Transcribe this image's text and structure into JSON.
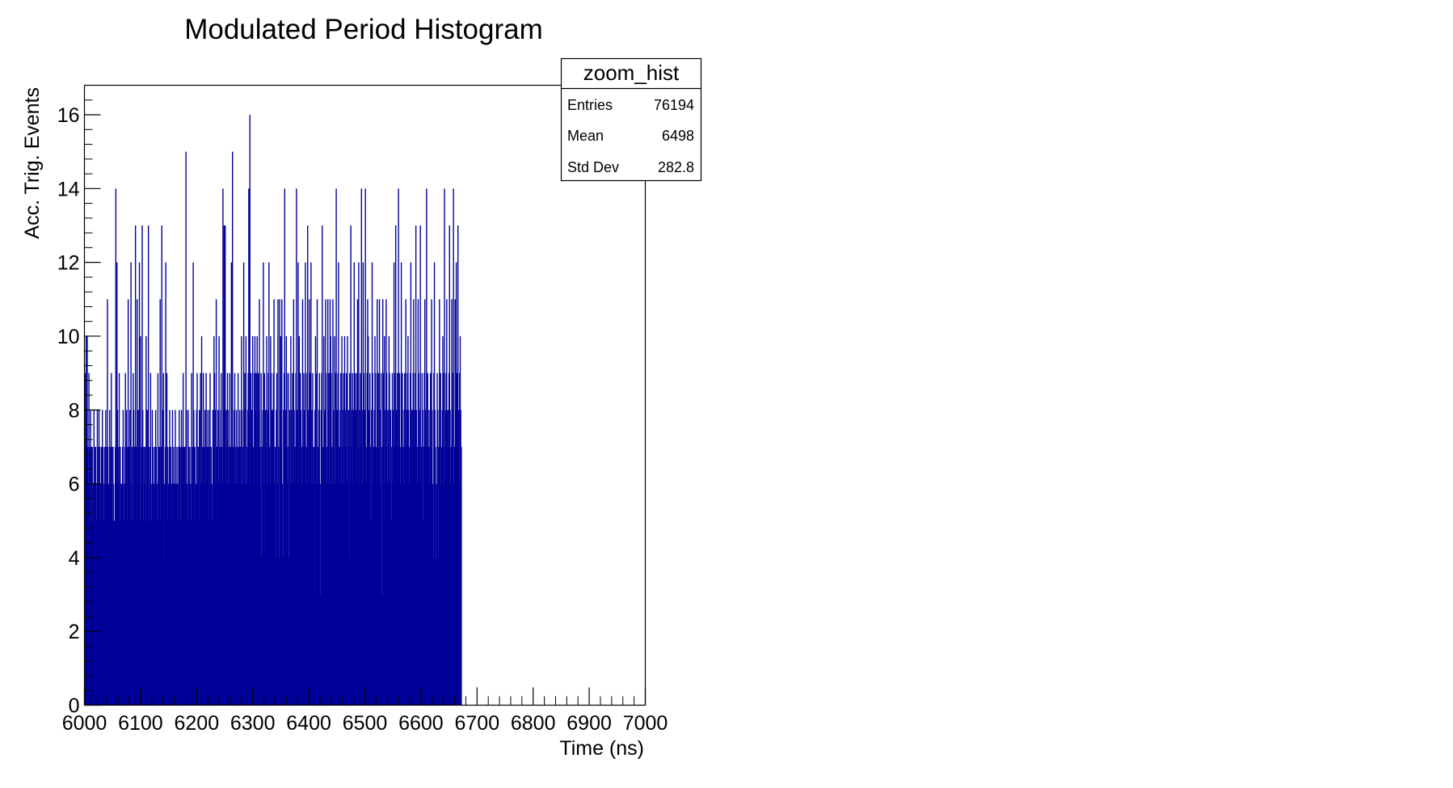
{
  "chart_data": {
    "type": "bar",
    "title": "Modulated Period Histogram",
    "xlabel": "Time (ns)",
    "ylabel": "Acc. Trig. Events",
    "xlim": [
      6000,
      7000
    ],
    "ylim": [
      0,
      16.8
    ],
    "x_ticks": [
      6000,
      6100,
      6200,
      6300,
      6400,
      6500,
      6600,
      6700,
      6800,
      6900,
      7000
    ],
    "y_ticks": [
      0,
      2,
      4,
      6,
      8,
      10,
      12,
      14,
      16
    ],
    "bin_width": 1,
    "color": "#000099",
    "series": [
      {
        "name": "zoom_hist",
        "bin_start": 6000,
        "values": [
          9,
          7,
          10,
          8,
          10,
          7,
          6,
          9,
          7,
          5,
          8,
          7,
          6,
          7,
          5,
          6,
          8,
          7,
          6,
          7,
          6,
          5,
          8,
          7,
          6,
          8,
          7,
          6,
          5,
          7,
          6,
          8,
          7,
          6,
          5,
          7,
          6,
          8,
          7,
          6,
          11,
          7,
          6,
          5,
          8,
          7,
          6,
          9,
          7,
          5,
          7,
          6,
          5,
          3,
          7,
          14,
          6,
          12,
          8,
          6,
          7,
          9,
          5,
          7,
          6,
          6,
          4,
          7,
          8,
          6,
          5,
          7,
          9,
          6,
          8,
          7,
          5,
          11,
          7,
          6,
          8,
          5,
          12,
          6,
          7,
          5,
          9,
          8,
          7,
          6,
          13,
          7,
          5,
          11,
          6,
          8,
          7,
          12,
          5,
          10,
          6,
          7,
          13,
          8,
          5,
          7,
          6,
          7,
          5,
          10,
          6,
          8,
          7,
          13,
          5,
          7,
          6,
          9,
          6,
          5,
          8,
          7,
          6,
          5,
          7,
          6,
          8,
          7,
          6,
          5,
          9,
          6,
          7,
          6,
          11,
          5,
          7,
          13,
          8,
          6,
          9,
          4,
          6,
          7,
          12,
          6,
          9,
          7,
          5,
          6,
          7,
          8,
          6,
          7,
          5,
          6,
          8,
          7,
          6,
          5,
          7,
          8,
          6,
          6,
          7,
          6,
          5,
          7,
          8,
          6,
          7,
          5,
          8,
          7,
          6,
          9,
          7,
          5,
          7,
          6,
          15,
          8,
          6,
          5,
          8,
          7,
          6,
          7,
          6,
          5,
          9,
          7,
          6,
          12,
          8,
          6,
          7,
          5,
          6,
          8,
          9,
          6,
          7,
          5,
          8,
          7,
          9,
          6,
          10,
          7,
          6,
          9,
          7,
          5,
          8,
          6,
          9,
          7,
          6,
          8,
          7,
          5,
          8,
          9,
          6,
          7,
          6,
          5,
          8,
          7,
          10,
          9,
          8,
          6,
          11,
          7,
          5,
          8,
          6,
          10,
          7,
          6,
          8,
          9,
          7,
          6,
          14,
          8,
          13,
          7,
          13,
          6,
          8,
          7,
          9,
          8,
          6,
          7,
          9,
          6,
          7,
          12,
          6,
          15,
          7,
          6,
          8,
          9,
          7,
          6,
          8,
          6,
          7,
          9,
          7,
          6,
          8,
          7,
          6,
          10,
          8,
          6,
          7,
          12,
          8,
          9,
          6,
          10,
          7,
          6,
          8,
          9,
          14,
          7,
          16,
          6,
          9,
          8,
          7,
          10,
          7,
          6,
          9,
          10,
          8,
          9,
          7,
          10,
          6,
          9,
          8,
          11,
          7,
          6,
          9,
          4,
          7,
          8,
          12,
          6,
          9,
          4,
          8,
          7,
          10,
          6,
          8,
          9,
          12,
          7,
          6,
          10,
          9,
          8,
          6,
          8,
          9,
          11,
          6,
          7,
          4,
          8,
          9,
          6,
          11,
          7,
          4,
          11,
          8,
          10,
          7,
          11,
          6,
          4,
          8,
          9,
          14,
          7,
          8,
          10,
          9,
          6,
          7,
          9,
          4,
          8,
          6,
          10,
          7,
          8,
          9,
          6,
          11,
          8,
          7,
          6,
          9,
          14,
          7,
          8,
          12,
          6,
          10,
          7,
          9,
          8,
          7,
          6,
          11,
          9,
          7,
          8,
          9,
          12,
          6,
          7,
          9,
          13,
          6,
          8,
          11,
          7,
          9,
          12,
          6,
          8,
          9,
          6,
          7,
          3,
          8,
          10,
          6,
          9,
          11,
          7,
          6,
          8,
          9,
          6,
          3,
          8,
          9,
          13,
          6,
          7,
          10,
          4,
          8,
          11,
          9,
          6,
          7,
          11,
          8,
          9,
          6,
          11,
          10,
          9,
          7,
          6,
          11,
          8,
          7,
          10,
          6,
          9,
          14,
          8,
          7,
          9,
          12,
          6,
          7,
          8,
          9,
          6,
          10,
          7,
          8,
          9,
          6,
          10,
          7,
          8,
          9,
          6,
          10,
          7,
          8,
          4,
          9,
          6,
          13,
          7,
          8,
          9,
          6,
          8,
          12,
          7,
          9,
          8,
          6,
          9,
          11,
          7,
          12,
          6,
          8,
          9,
          7,
          14,
          8,
          6,
          12,
          9,
          8,
          7,
          14,
          7,
          6,
          9,
          11,
          10,
          8,
          6,
          9,
          7,
          5,
          8,
          12,
          9,
          6,
          7,
          8,
          10,
          9,
          7,
          6,
          11,
          8,
          9,
          7,
          11,
          6,
          8,
          9,
          3,
          7,
          11,
          9,
          6,
          10,
          8,
          7,
          11,
          9,
          6,
          8,
          7,
          10,
          9,
          6,
          8,
          7,
          5,
          9,
          8,
          6,
          12,
          7,
          9,
          13,
          8,
          6,
          9,
          7,
          14,
          8,
          9,
          6,
          7,
          12,
          8,
          9,
          7,
          6,
          8,
          9,
          6,
          11,
          7,
          8,
          9,
          10,
          8,
          6,
          7,
          9,
          12,
          7,
          8,
          6,
          9,
          11,
          7,
          8,
          9,
          13,
          8,
          7,
          6,
          11,
          9,
          7,
          8,
          13,
          6,
          7,
          9,
          8,
          5,
          7,
          9,
          11,
          8,
          7,
          14,
          6,
          9,
          8,
          7,
          6,
          8,
          9,
          7,
          11,
          8,
          6,
          4,
          9,
          12,
          8,
          7,
          4,
          6,
          9,
          8,
          4,
          7,
          11,
          8,
          9,
          6,
          7,
          8,
          10,
          9,
          6,
          14,
          7,
          8,
          9,
          11,
          6,
          8,
          7,
          9,
          13,
          8,
          6,
          7,
          11,
          8,
          9,
          14,
          6,
          7,
          11,
          8,
          12,
          9,
          7,
          13,
          8,
          6,
          9,
          10,
          8,
          7
        ]
      }
    ],
    "stats_box": {
      "title": "zoom_hist",
      "rows": [
        {
          "label": "Entries",
          "value": "76194"
        },
        {
          "label": "Mean",
          "value": "6498"
        },
        {
          "label": "Std Dev",
          "value": "282.8"
        }
      ]
    },
    "legend_placement": "top-right",
    "grid": false
  }
}
